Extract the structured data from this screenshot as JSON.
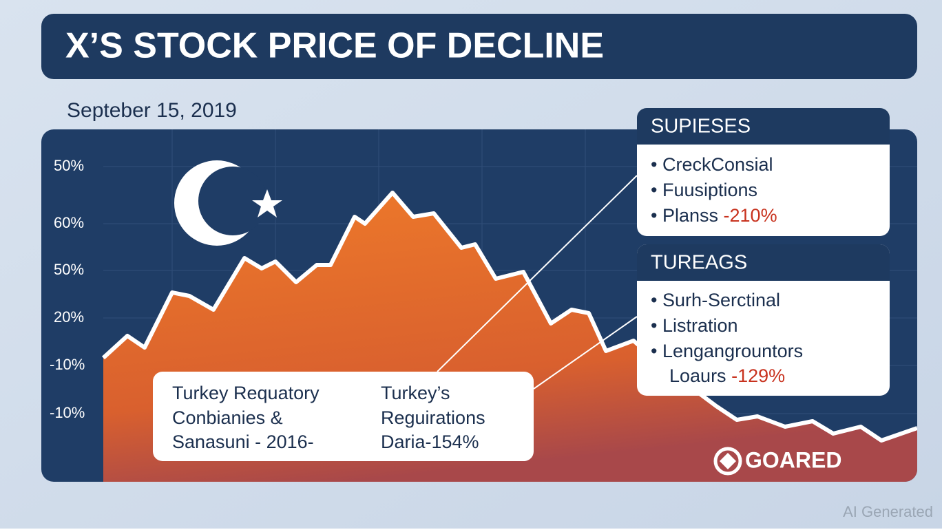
{
  "header": {
    "title": "X’S STOCK PRICE OF DECLINE",
    "date": "Septeber 15, 2019"
  },
  "axis_labels": [
    "50%",
    "60%",
    "50%",
    "20%",
    "-10%",
    "-10%"
  ],
  "panels": [
    {
      "title": "SUPIESES",
      "items": [
        {
          "text": "CreckConsial"
        },
        {
          "text": "Fuusiptions"
        },
        {
          "text": "Planss",
          "change": "-210%"
        }
      ]
    },
    {
      "title": "TUREAGS",
      "items": [
        {
          "text": "Surh-Serctinal"
        },
        {
          "text": "Listration"
        },
        {
          "text": "Lengangrountors"
        },
        {
          "text": "Loaurs",
          "change": "-129%"
        }
      ]
    }
  ],
  "callout": {
    "left": [
      "Turkey Requatory",
      "Conbianies &",
      "Sanasuni - 2016-"
    ],
    "right": [
      "Turkey’s",
      "Reguirations",
      "Daria-154%"
    ]
  },
  "logo": "GOARED",
  "watermark": "AI Generated"
}
